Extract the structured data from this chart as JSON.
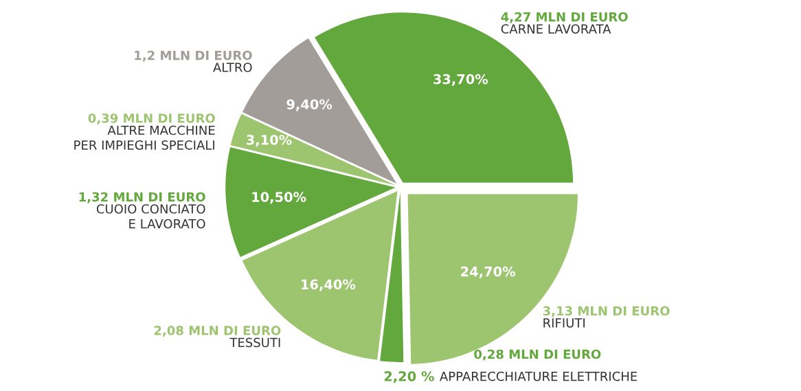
{
  "chart_data": {
    "type": "pie",
    "categories": [
      "CARNE LAVORATA",
      "RIFIUTI",
      "APPARECCHIATURE ELETTRICHE",
      "TESSUTI",
      "CUOIO CONCIATO\nE LAVORATO",
      "ALTRE MACCHINE\nPER IMPIEGHI SPECIALI",
      "ALTRO"
    ],
    "values": [
      33.7,
      24.7,
      2.2,
      16.4,
      10.5,
      3.1,
      9.4
    ],
    "value_labels": [
      "33,70%",
      "24,70%",
      "2,20 %",
      "16,40%",
      "10,50%",
      "3,10%",
      "9,40%"
    ],
    "colors": [
      "#63a83c",
      "#9dc46e",
      "#63a83c",
      "#9dc46e",
      "#63a83c",
      "#9dc46e",
      "#a29d99"
    ],
    "annotations": [
      {
        "text": "4,27 MLN DI EURO",
        "x": "CARNE LAVORATA"
      },
      {
        "text": "3,13 MLN DI EURO",
        "x": "RIFIUTI"
      },
      {
        "text": "0,28 MLN DI EURO",
        "x": "APPARECCHIATURE ELETTRICHE"
      },
      {
        "text": "2,08 MLN DI EURO",
        "x": "TESSUTI"
      },
      {
        "text": "1,32 MLN DI EURO",
        "x": "CUOIO CONCIATO\nE LAVORATO"
      },
      {
        "text": "0,39 MLN DI EURO",
        "x": "ALTRE MACCHINE\nPER IMPIEGHI SPECIALI"
      },
      {
        "text": "1,2 MLN DI EURO",
        "x": "ALTRO"
      }
    ]
  }
}
